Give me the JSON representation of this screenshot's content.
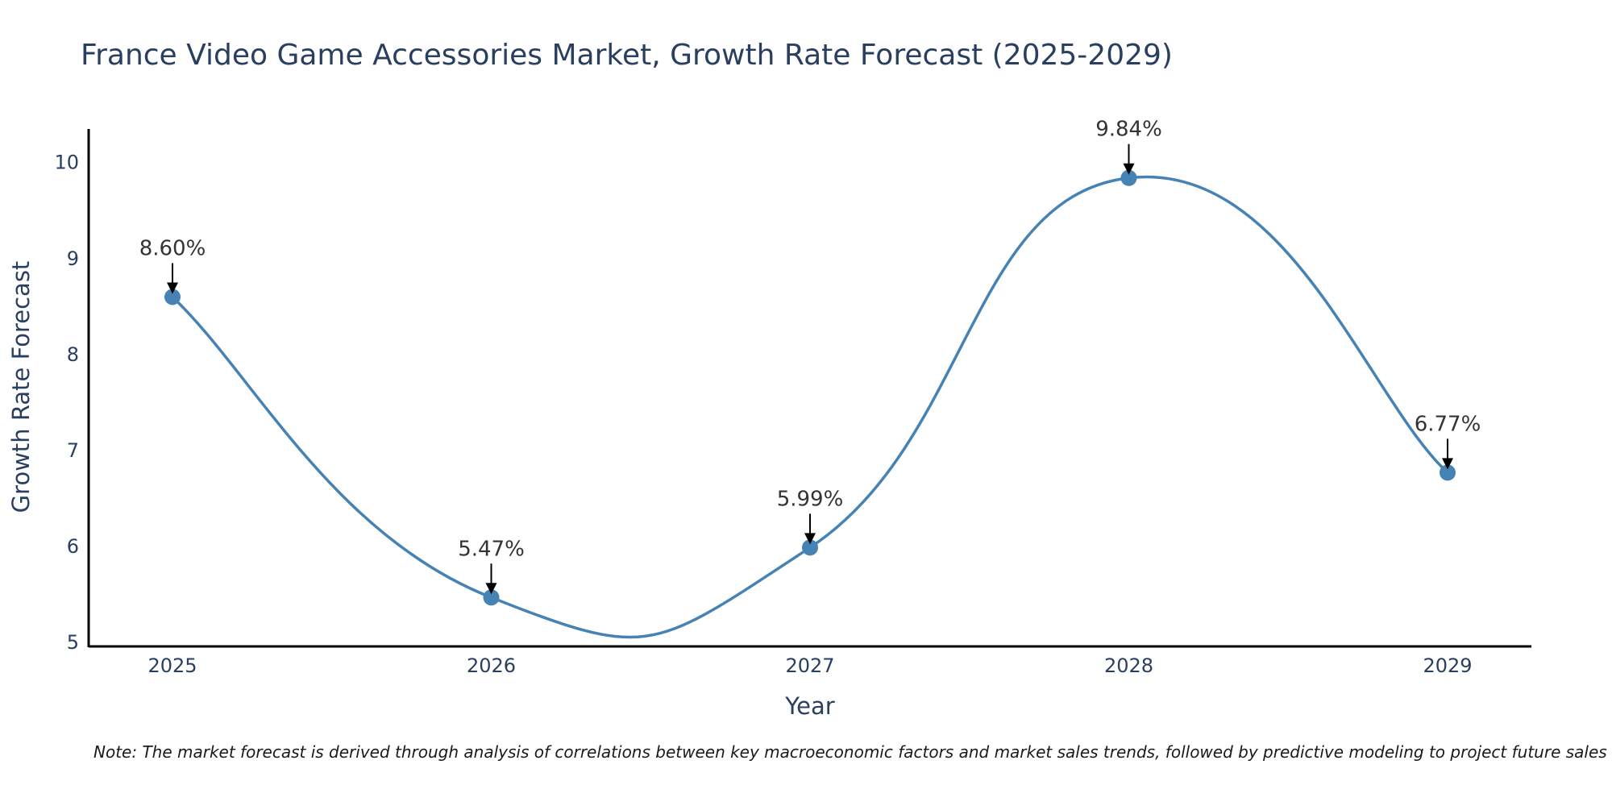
{
  "chart_data": {
    "type": "line",
    "title": "France Video Game Accessories Market, Growth Rate Forecast (2025-2029)",
    "xlabel": "Year",
    "ylabel": "Growth Rate Forecast",
    "x": [
      "2025",
      "2026",
      "2027",
      "2028",
      "2029"
    ],
    "series": [
      {
        "name": "Growth Rate Forecast",
        "values": [
          8.6,
          5.47,
          5.99,
          9.84,
          6.77
        ],
        "color": "#4682b4"
      }
    ],
    "annotations": [
      "8.60%",
      "5.47%",
      "5.99%",
      "9.84%",
      "6.77%"
    ],
    "ylim": [
      4.96,
      10.35
    ],
    "yticks": [
      5,
      6,
      7,
      8,
      9,
      10
    ],
    "grid": false,
    "line_shape": "spline"
  },
  "note": "Note: The market forecast is derived through analysis of correlations between key macroeconomic factors and market sales trends, followed by predictive modeling to project future sales"
}
